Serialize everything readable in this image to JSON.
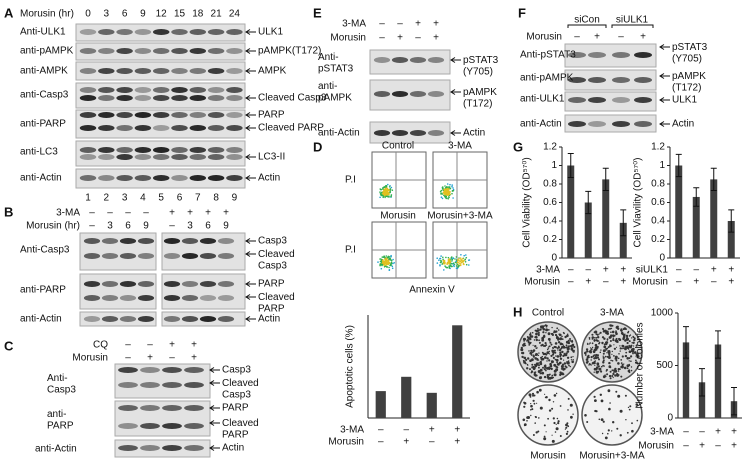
{
  "panels": {
    "A": {
      "label": "A",
      "treatment": "Morusin (hr)",
      "times": [
        0,
        3,
        6,
        9,
        12,
        15,
        18,
        21,
        24
      ],
      "antibodies": [
        "Anti-ULK1",
        "anti-pAMPK",
        "anti-AMPK",
        "anti-Casp3",
        "anti-PARP",
        "anti-LC3",
        "anti-Actin"
      ],
      "targets": [
        "ULK1",
        "pAMPK(T172)",
        "AMPK",
        "Cleaved Casp3",
        "PARP",
        "Cleaved PARP",
        "LC3-II",
        "Actin"
      ],
      "lanes": [
        1,
        2,
        3,
        4,
        5,
        6,
        7,
        8,
        9
      ]
    },
    "B": {
      "label": "B",
      "rows": [
        {
          "label": "3-MA",
          "signs": [
            "–",
            "–",
            "–",
            "–",
            "+",
            "+",
            "+",
            "+"
          ]
        },
        {
          "label": "Morusin (hr)",
          "signs": [
            "–",
            3,
            6,
            9,
            "–",
            3,
            6,
            9
          ]
        }
      ],
      "antibodies": [
        "Anti-Casp3",
        "anti-PARP",
        "anti-Actin"
      ],
      "targets": [
        "Casp3",
        "Cleaved\nCasp3",
        "PARP",
        "Cleaved\nPARP",
        "Actin"
      ]
    },
    "C": {
      "label": "C",
      "rows": [
        {
          "label": "CQ",
          "signs": [
            "–",
            "–",
            "+",
            "+"
          ]
        },
        {
          "label": "Morusin",
          "signs": [
            "–",
            "+",
            "–",
            "+"
          ]
        }
      ],
      "antibodies": [
        "Anti-\nCasp3",
        "anti-\nPARP",
        "anti-Actin"
      ],
      "targets": [
        "Casp3",
        "Cleaved\nCasp3",
        "PARP",
        "Cleaved\nPARP",
        "Actin"
      ]
    },
    "E": {
      "label": "E",
      "rows": [
        {
          "label": "3-MA",
          "signs": [
            "–",
            "–",
            "+",
            "+"
          ]
        },
        {
          "label": "Morusin",
          "signs": [
            "–",
            "+",
            "–",
            "+"
          ]
        }
      ],
      "antibodies": [
        "Anti-\npSTAT3",
        "anti-\npAMPK",
        "anti-Actin"
      ],
      "targets": [
        "pSTAT3\n(Y705)",
        "pAMPK\n(T172)",
        "Actin"
      ]
    },
    "F": {
      "label": "F",
      "groups": [
        "siCon",
        "siULK1"
      ],
      "rows": [
        {
          "label": "Morusin",
          "signs": [
            "–",
            "+",
            "–",
            "+"
          ]
        }
      ],
      "antibodies": [
        "Anti-pSTAT3",
        "anti-pAMPK",
        "anti-ULK1",
        "anti-Actin"
      ],
      "targets": [
        "pSTAT3\n(Y705)",
        "pAMPK\n(T172)",
        "ULK1",
        "Actin"
      ]
    },
    "D": {
      "label": "D",
      "plots": [
        "Control",
        "3-MA",
        "Morusin",
        "Morusin+3-MA"
      ],
      "y_axis": "P.I",
      "x_axis": "Annexin V"
    },
    "G": {
      "label": "G"
    },
    "H": {
      "label": "H",
      "dishes": [
        "Control",
        "3-MA",
        "Morusin",
        "Morusin+3-MA"
      ]
    }
  },
  "chart_data": [
    {
      "type": "bar",
      "y_label": "Apoptotic cells (%)",
      "values": [
        4.7,
        7.2,
        4.4,
        16.2
      ],
      "ylim": [
        0,
        18
      ],
      "color": "#404040",
      "treatments": [
        {
          "label": "3-MA",
          "signs": [
            "–",
            "–",
            "+",
            "+"
          ]
        },
        {
          "label": "Morusin",
          "signs": [
            "–",
            "+",
            "–",
            "+"
          ]
        }
      ]
    },
    {
      "type": "bar",
      "y_label": "Cell Viability (OD⁵⁷⁰)",
      "values": [
        1,
        0.6,
        0.85,
        0.38
      ],
      "errors": [
        0.13,
        0.12,
        0.12,
        0.14
      ],
      "ylim": [
        0,
        1.2
      ],
      "yticks": [
        0,
        0.2,
        0.4,
        0.6,
        0.8,
        1,
        1.2
      ],
      "color": "#404040",
      "treatments": [
        {
          "label": "3-MA",
          "signs": [
            "–",
            "–",
            "+",
            "+"
          ]
        },
        {
          "label": "Morusin",
          "signs": [
            "–",
            "+",
            "–",
            "+"
          ]
        }
      ]
    },
    {
      "type": "bar",
      "y_label": "Cell Viavility (OD⁵⁷⁰)",
      "values": [
        1,
        0.66,
        0.85,
        0.4
      ],
      "errors": [
        0.12,
        0.1,
        0.12,
        0.12
      ],
      "ylim": [
        0,
        1.2
      ],
      "yticks": [
        0,
        0.2,
        0.4,
        0.6,
        0.8,
        1,
        1.2
      ],
      "color": "#404040",
      "treatments": [
        {
          "label": "siULK1",
          "signs": [
            "–",
            "–",
            "+",
            "+"
          ]
        },
        {
          "label": "Morusin",
          "signs": [
            "–",
            "+",
            "–",
            "+"
          ]
        }
      ]
    },
    {
      "type": "bar",
      "y_label": "Number of colonies",
      "values": [
        720,
        340,
        700,
        160
      ],
      "errors": [
        150,
        130,
        130,
        130
      ],
      "ylim": [
        0,
        1000
      ],
      "yticks": [
        0,
        500,
        1000
      ],
      "color": "#404040",
      "treatments": [
        {
          "label": "3-MA",
          "signs": [
            "–",
            "–",
            "+",
            "+"
          ]
        },
        {
          "label": "Morusin",
          "signs": [
            "–",
            "+",
            "–",
            "+"
          ]
        }
      ]
    }
  ]
}
